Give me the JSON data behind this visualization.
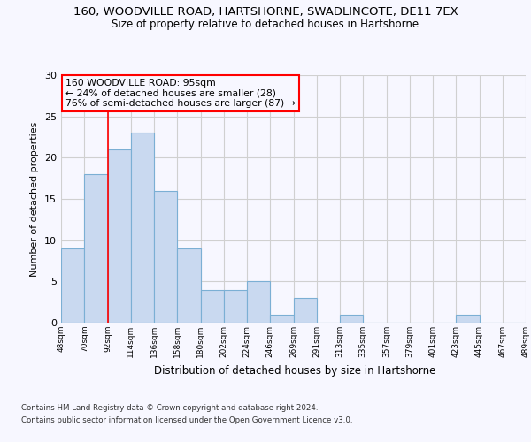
{
  "title_line1": "160, WOODVILLE ROAD, HARTSHORNE, SWADLINCOTE, DE11 7EX",
  "title_line2": "Size of property relative to detached houses in Hartshorne",
  "xlabel": "Distribution of detached houses by size in Hartshorne",
  "ylabel": "Number of detached properties",
  "bar_values": [
    9,
    18,
    21,
    23,
    16,
    9,
    4,
    4,
    5,
    1,
    3,
    0,
    1,
    0,
    0,
    0,
    0,
    1,
    0,
    0
  ],
  "bar_labels": [
    "48sqm",
    "70sqm",
    "92sqm",
    "114sqm",
    "136sqm",
    "158sqm",
    "180sqm",
    "202sqm",
    "224sqm",
    "246sqm",
    "269sqm",
    "291sqm",
    "313sqm",
    "335sqm",
    "357sqm",
    "379sqm",
    "401sqm",
    "423sqm",
    "445sqm",
    "467sqm",
    "489sqm"
  ],
  "bar_color": "#c9d9f0",
  "bar_edge_color": "#7bafd4",
  "grid_color": "#d0d0d0",
  "annotation_line1": "160 WOODVILLE ROAD: 95sqm",
  "annotation_line2": "← 24% of detached houses are smaller (28)",
  "annotation_line3": "76% of semi-detached houses are larger (87) →",
  "vline_x": 2,
  "ylim": [
    0,
    30
  ],
  "yticks": [
    0,
    5,
    10,
    15,
    20,
    25,
    30
  ],
  "footer_line1": "Contains HM Land Registry data © Crown copyright and database right 2024.",
  "footer_line2": "Contains public sector information licensed under the Open Government Licence v3.0.",
  "bg_color": "#f7f7ff"
}
